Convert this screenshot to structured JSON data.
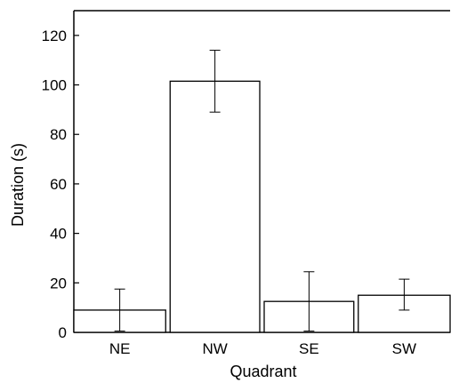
{
  "chart_data": {
    "type": "bar",
    "categories": [
      "NE",
      "NW",
      "SE",
      "SW"
    ],
    "values": [
      9,
      101.5,
      12.5,
      15
    ],
    "error_bars": [
      {
        "low": 0.5,
        "high": 17.5
      },
      {
        "low": 89,
        "high": 114
      },
      {
        "low": 0.5,
        "high": 24.5
      },
      {
        "low": 9,
        "high": 21.5
      }
    ],
    "xlabel": "Quadrant",
    "ylabel": "Duration (s)",
    "ylim": [
      0,
      130
    ],
    "yticks": [
      0,
      20,
      40,
      60,
      80,
      100,
      120
    ],
    "grid": false,
    "colors": {
      "bar_fill": "#ffffff",
      "bar_stroke": "#000000",
      "axis": "#000000"
    }
  }
}
